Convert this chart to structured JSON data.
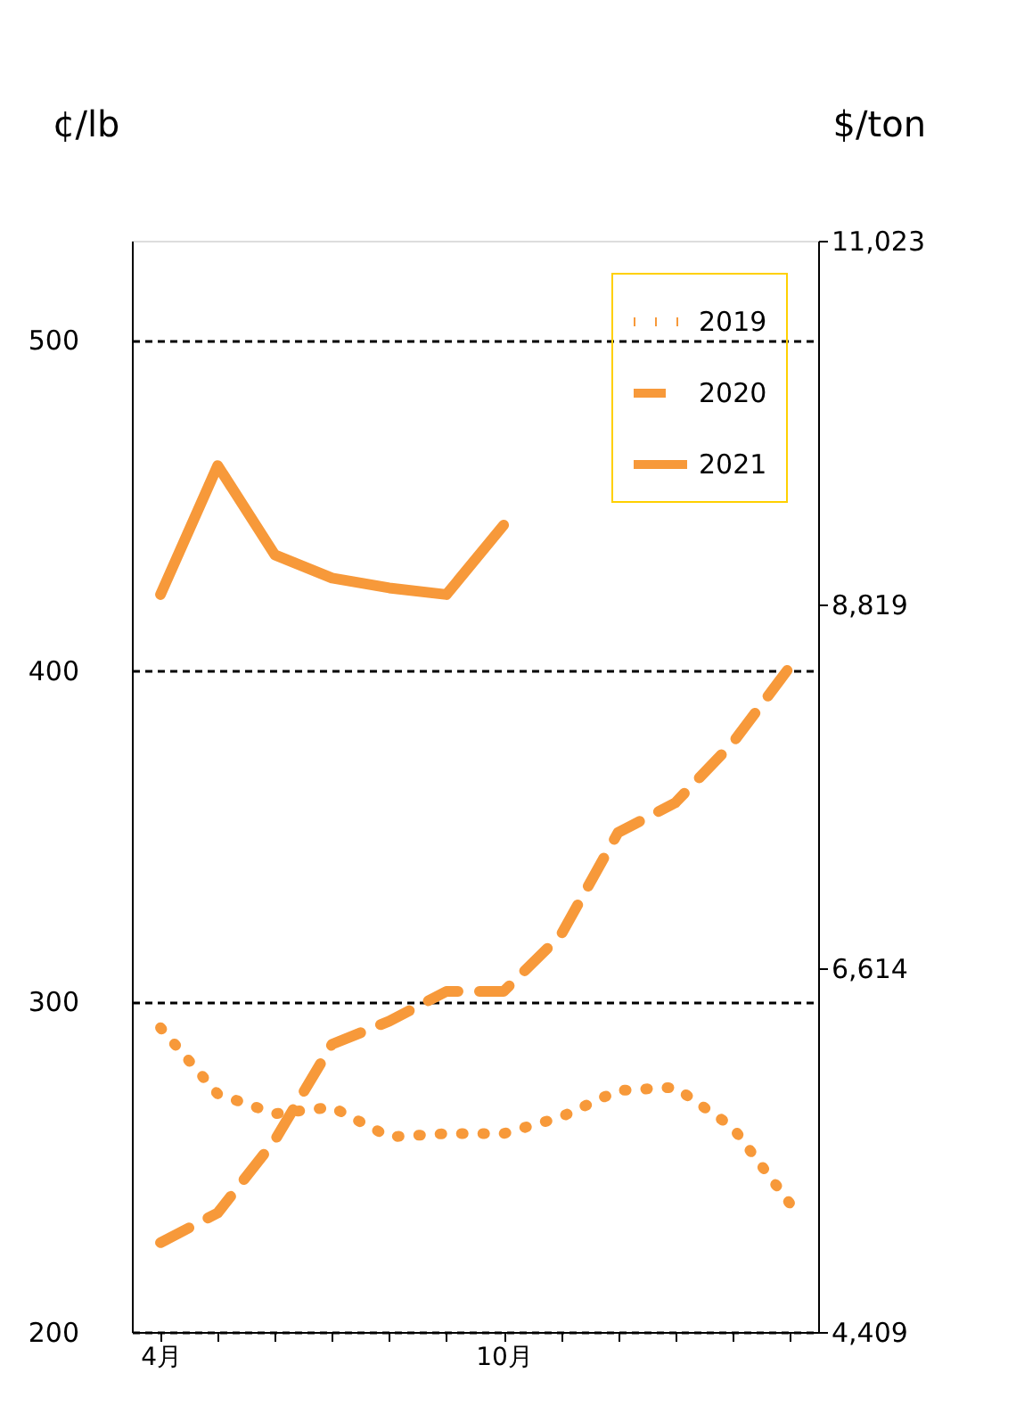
{
  "chart_data": {
    "type": "line",
    "ylabel": "¢/lb",
    "y2label": "$/ton",
    "categories": [
      "4月",
      null,
      null,
      null,
      null,
      null,
      "10月",
      null,
      null,
      null,
      null,
      null
    ],
    "series": [
      {
        "name": "2019",
        "color": "#f7993a",
        "line_style": "dotted",
        "values": [
          292,
          272,
          266,
          268,
          259,
          260,
          260,
          265,
          273,
          274,
          262,
          239
        ]
      },
      {
        "name": "2020",
        "color": "#f7993a",
        "line_style": "dashed",
        "values": [
          227,
          236,
          258,
          287,
          294,
          303,
          303,
          320,
          351,
          360,
          378,
          401
        ]
      },
      {
        "name": "2021",
        "color": "#f7993a",
        "line_style": "solid",
        "values": [
          423,
          462,
          435,
          428,
          425,
          423,
          444,
          null,
          null,
          null,
          null,
          null
        ]
      }
    ],
    "ylim": [
      200,
      530
    ],
    "yticks": [
      200,
      300,
      400,
      500
    ],
    "y2lim": [
      4409,
      11023
    ],
    "y2ticks": [
      {
        "value": 4409,
        "label": "4,409"
      },
      {
        "value": 6614,
        "label": "6,614"
      },
      {
        "value": 8819,
        "label": "8,819"
      },
      {
        "value": 11023,
        "label": "11,023"
      }
    ],
    "grid": "y",
    "legend": "top right",
    "marker": "none"
  }
}
